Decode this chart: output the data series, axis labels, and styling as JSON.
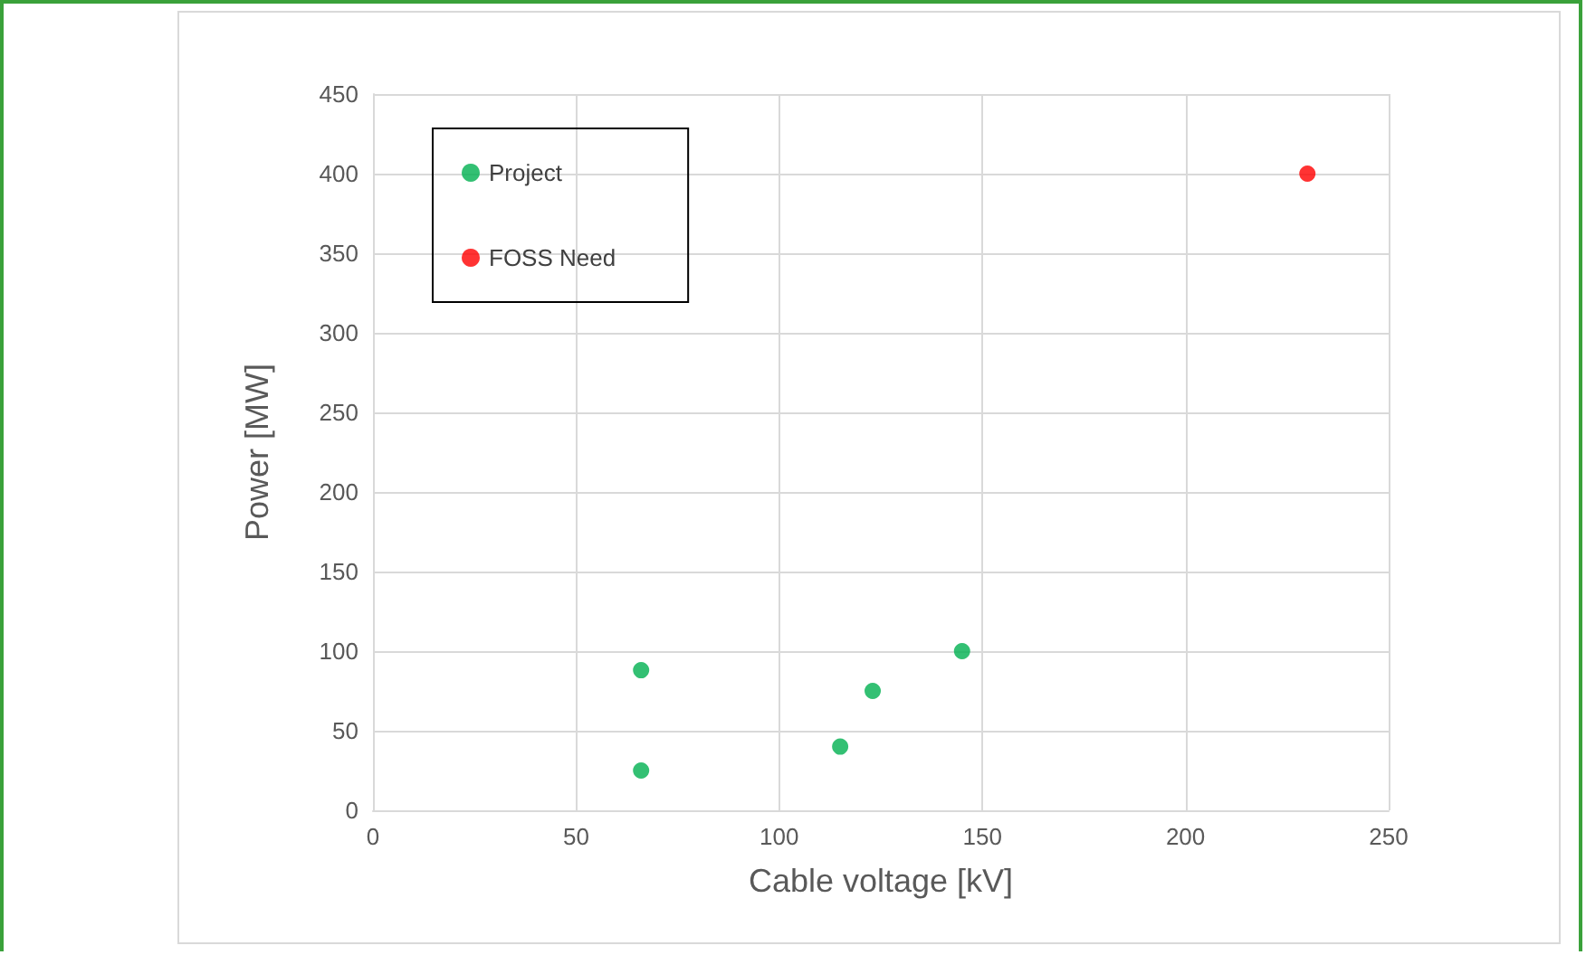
{
  "chart_data": {
    "type": "scatter",
    "xlabel": "Cable voltage [kV]",
    "ylabel": "Power [MW]",
    "series": [
      {
        "name": "Project",
        "color": "#00b050",
        "x": [
          66,
          66,
          115,
          123,
          145
        ],
        "values": [
          88,
          25,
          40,
          75,
          100
        ]
      },
      {
        "name": "FOSS Need",
        "color": "#ff0000",
        "x": [
          230
        ],
        "values": [
          400
        ]
      }
    ],
    "xlim": [
      0,
      250
    ],
    "xticks": [
      0,
      50,
      100,
      150,
      200,
      250
    ],
    "ylim": [
      0,
      450
    ],
    "yticks": [
      0,
      50,
      100,
      150,
      200,
      250,
      300,
      350,
      400,
      450
    ],
    "grid": true,
    "legend": "top left",
    "marker": "circle"
  }
}
